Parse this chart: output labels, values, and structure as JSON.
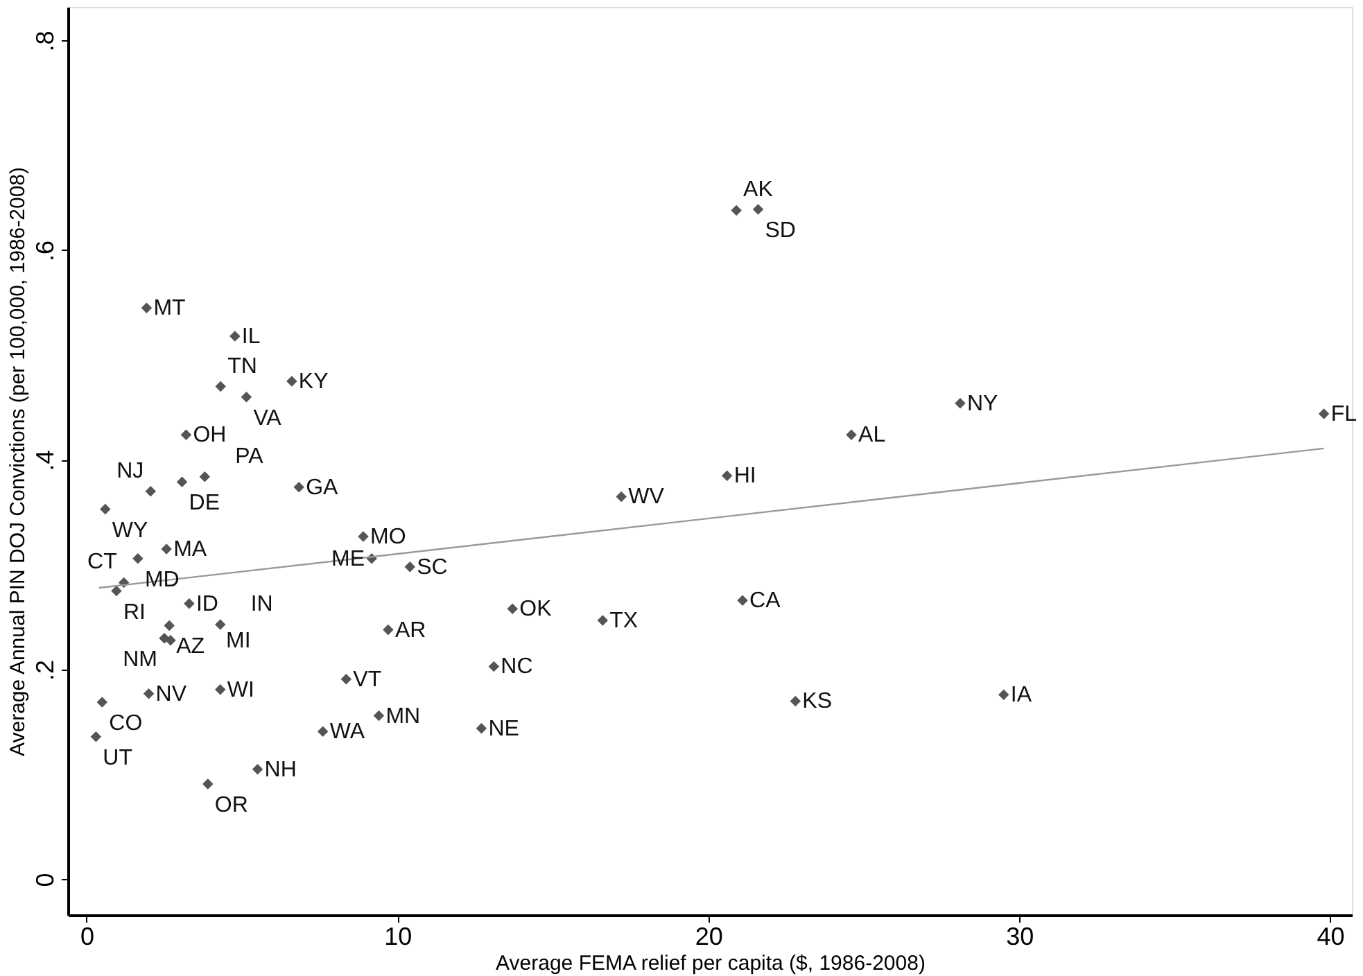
{
  "chart_data": {
    "type": "scatter",
    "xlabel": "Average FEMA relief per capita ($, 1986-2008)",
    "ylabel": "Average Annual PIN DOJ Convictions (per 100,000, 1986-2008)",
    "xlim": [
      -0.6,
      40.7
    ],
    "xticks": [
      0,
      10,
      20,
      30,
      40
    ],
    "ylim": [
      -0.034,
      0.832
    ],
    "yticks": [
      {
        "value": 0,
        "label": "0"
      },
      {
        "value": 0.2,
        "label": ".2"
      },
      {
        "value": 0.4,
        "label": ".4"
      },
      {
        "value": 0.6,
        "label": ".6"
      },
      {
        "value": 0.8,
        "label": ".8"
      }
    ],
    "grid": false,
    "marker": "diamond",
    "series": [
      {
        "color": "#555555",
        "x": [
          1.93,
          4.77,
          4.31,
          5.14,
          6.6,
          3.2,
          3.07,
          3.8,
          2.06,
          0.6,
          6.83,
          8.9,
          9.17,
          10.4,
          2.57,
          1.65,
          1.2,
          0.96,
          3.3,
          2.66,
          2.5,
          2.7,
          4.3,
          9.7,
          17.2,
          20.6,
          24.6,
          28.1,
          39.8,
          20.9,
          21.6,
          13.7,
          16.6,
          21.1,
          13.1,
          8.35,
          4.3,
          2.0,
          0.5,
          0.3,
          7.6,
          9.4,
          12.7,
          22.8,
          29.5,
          5.5,
          3.9
        ],
        "values": [
          0.545,
          0.518,
          0.47,
          0.46,
          0.475,
          0.424,
          0.379,
          0.384,
          0.37,
          0.353,
          0.374,
          0.327,
          0.306,
          0.298,
          0.315,
          0.306,
          0.283,
          0.275,
          0.263,
          0.242,
          0.23,
          0.228,
          0.243,
          0.238,
          0.365,
          0.385,
          0.424,
          0.454,
          0.444,
          0.638,
          0.639,
          0.258,
          0.247,
          0.266,
          0.203,
          0.191,
          0.181,
          0.177,
          0.169,
          0.136,
          0.141,
          0.156,
          0.144,
          0.17,
          0.176,
          0.105,
          0.091
        ]
      },
      {
        "type": "line",
        "color": "#999999",
        "line_style": "solid",
        "marker": "none",
        "x": [
          0.4,
          39.8
        ],
        "values": [
          0.278,
          0.411
        ]
      }
    ],
    "annotations": [
      {
        "text": "MT",
        "x": 1.93,
        "y": 0.545
      },
      {
        "text": "IL",
        "x": 4.77,
        "y": 0.518
      },
      {
        "text": "TN",
        "x": 4.31,
        "y": 0.47
      },
      {
        "text": "VA",
        "x": 5.14,
        "y": 0.46
      },
      {
        "text": "KY",
        "x": 6.6,
        "y": 0.475
      },
      {
        "text": "OH",
        "x": 3.2,
        "y": 0.424
      },
      {
        "text": "DE",
        "x": 3.07,
        "y": 0.379
      },
      {
        "text": "PA",
        "x": 3.8,
        "y": 0.384
      },
      {
        "text": "NJ",
        "x": 2.06,
        "y": 0.37
      },
      {
        "text": "WY",
        "x": 0.6,
        "y": 0.353
      },
      {
        "text": "GA",
        "x": 6.83,
        "y": 0.374
      },
      {
        "text": "MO",
        "x": 8.9,
        "y": 0.327
      },
      {
        "text": "ME",
        "x": 9.17,
        "y": 0.306
      },
      {
        "text": "SC",
        "x": 10.4,
        "y": 0.298
      },
      {
        "text": "MA",
        "x": 2.57,
        "y": 0.315
      },
      {
        "text": "MD",
        "x": 1.65,
        "y": 0.306
      },
      {
        "text": "CT",
        "x": 1.2,
        "y": 0.283
      },
      {
        "text": "RI",
        "x": 0.96,
        "y": 0.275
      },
      {
        "text": "ID",
        "x": 3.3,
        "y": 0.263
      },
      {
        "text": "AZ",
        "x": 2.66,
        "y": 0.242
      },
      {
        "text": "NM",
        "x": 2.5,
        "y": 0.23
      },
      {
        "text": "MI",
        "x": 2.7,
        "y": 0.228
      },
      {
        "text": "IN",
        "x": 4.3,
        "y": 0.243
      },
      {
        "text": "AR",
        "x": 9.7,
        "y": 0.238
      },
      {
        "text": "WV",
        "x": 17.2,
        "y": 0.365
      },
      {
        "text": "HI",
        "x": 20.6,
        "y": 0.385
      },
      {
        "text": "AL",
        "x": 24.6,
        "y": 0.424
      },
      {
        "text": "NY",
        "x": 28.1,
        "y": 0.454
      },
      {
        "text": "FL",
        "x": 39.8,
        "y": 0.444
      },
      {
        "text": "AK",
        "x": 20.9,
        "y": 0.638
      },
      {
        "text": "SD",
        "x": 21.6,
        "y": 0.639
      },
      {
        "text": "OK",
        "x": 13.7,
        "y": 0.258
      },
      {
        "text": "TX",
        "x": 16.6,
        "y": 0.247
      },
      {
        "text": "CA",
        "x": 21.1,
        "y": 0.266
      },
      {
        "text": "NC",
        "x": 13.1,
        "y": 0.203
      },
      {
        "text": "VT",
        "x": 8.35,
        "y": 0.191
      },
      {
        "text": "WI",
        "x": 4.3,
        "y": 0.181
      },
      {
        "text": "NV",
        "x": 2.0,
        "y": 0.177
      },
      {
        "text": "CO",
        "x": 0.5,
        "y": 0.169
      },
      {
        "text": "UT",
        "x": 0.3,
        "y": 0.136
      },
      {
        "text": "WA",
        "x": 7.6,
        "y": 0.141
      },
      {
        "text": "MN",
        "x": 9.4,
        "y": 0.156
      },
      {
        "text": "NE",
        "x": 12.7,
        "y": 0.144
      },
      {
        "text": "KS",
        "x": 22.8,
        "y": 0.17
      },
      {
        "text": "IA",
        "x": 29.5,
        "y": 0.176
      },
      {
        "text": "NH",
        "x": 5.5,
        "y": 0.105
      },
      {
        "text": "OR",
        "x": 3.9,
        "y": 0.091
      }
    ]
  }
}
